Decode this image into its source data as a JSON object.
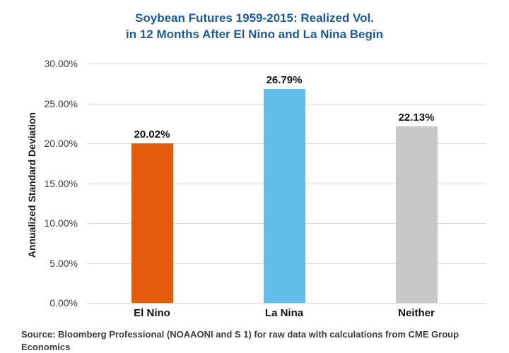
{
  "title_lines": [
    "Soybean Futures 1959-2015: Realized Vol.",
    "in 12 Months After El Nino and La Nina Begin"
  ],
  "title_color": "#1B5A9E",
  "source": "Source: Bloomberg Professional (NOAAONI and S 1) for raw data with calculations from CME Group Economics",
  "chart_data": {
    "type": "bar",
    "title": "Soybean Futures 1959-2015: Realized Vol. in 12 Months After El Nino and La Nina Begin",
    "categories": [
      "El Nino",
      "La Nina",
      "Neither"
    ],
    "values": [
      20.02,
      26.79,
      22.13
    ],
    "value_labels": [
      "20.02%",
      "26.79%",
      "22.13%"
    ],
    "bar_colors": [
      "#E45B0E",
      "#62BEE9",
      "#C7C7C7"
    ],
    "xlabel": "",
    "ylabel": "Annualized Standard Deviation",
    "ylim": [
      0,
      30
    ],
    "ytick_values": [
      30,
      25,
      20,
      15,
      10,
      5,
      0
    ],
    "ytick_labels": [
      "30.00%",
      "25.00%",
      "20.00%",
      "15.00%",
      "10.00%",
      "5.00%",
      "0.00%"
    ],
    "grid": "horizontal",
    "gridline_color": "#DBDBDB",
    "legend": "none"
  }
}
